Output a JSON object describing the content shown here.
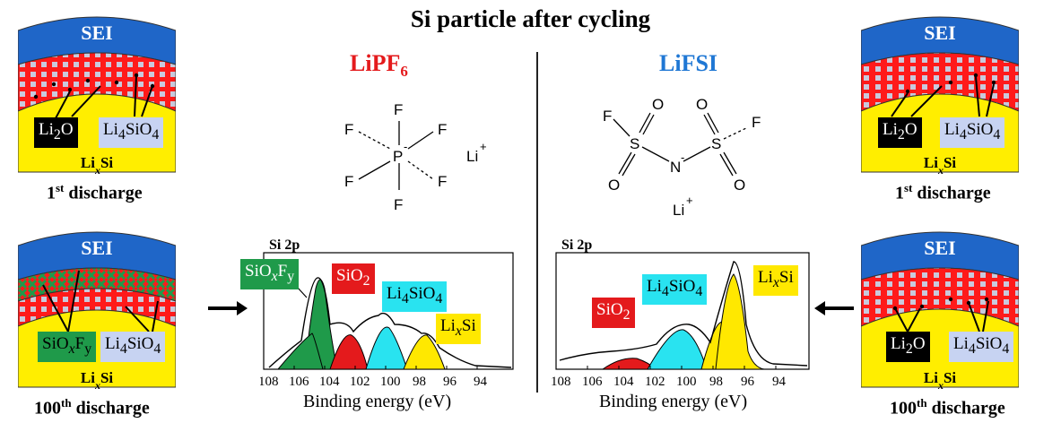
{
  "title": "Si particle after cycling",
  "left": {
    "salt": "LiPF",
    "salt_sub": "6",
    "salt_color": "#e41a1c",
    "molecule": {
      "center": "P",
      "charge": "-",
      "ligand": "F",
      "counter_ion": "Li",
      "counter_charge": "+"
    },
    "spectrum": {
      "title": "Si 2p",
      "xlabel": "Binding energy (eV)",
      "ticks": [
        "108",
        "106",
        "104",
        "102",
        "100",
        "98",
        "96",
        "94"
      ],
      "peaks": [
        {
          "label": "SiO",
          "sub1": "x",
          "mid": "F",
          "sub2": "y",
          "color": "#1a8a3a",
          "text_color": "#fff"
        },
        {
          "label": "SiO",
          "sub1": "2",
          "color": "#e41a1c",
          "text_color": "#fff"
        },
        {
          "label": "Li",
          "sub1": "4",
          "mid": "SiO",
          "sub2": "4",
          "color": "#29e3f0",
          "text_color": "#000"
        },
        {
          "label": "Li",
          "sub1": "x",
          "mid": "Si",
          "color": "#ffe800",
          "text_color": "#000"
        }
      ]
    }
  },
  "right": {
    "salt": "LiFSI",
    "salt_color": "#1f77d4",
    "molecule": {
      "atoms_f": "F",
      "atoms_o": "O",
      "atoms_s": "S",
      "atom_n": "N",
      "charge": "-",
      "counter_ion": "Li",
      "counter_charge": "+"
    },
    "spectrum": {
      "title": "Si 2p",
      "xlabel": "Binding energy (eV)",
      "ticks": [
        "108",
        "106",
        "104",
        "102",
        "100",
        "98",
        "96",
        "94"
      ],
      "peaks": [
        {
          "label": "SiO",
          "sub1": "2",
          "color": "#e41a1c",
          "text_color": "#fff"
        },
        {
          "label": "Li",
          "sub1": "4",
          "mid": "SiO",
          "sub2": "4",
          "color": "#29e3f0",
          "text_color": "#000"
        },
        {
          "label": "Li",
          "sub1": "x",
          "mid": "Si",
          "color": "#ffe800",
          "text_color": "#000"
        }
      ]
    }
  },
  "particles": {
    "sei": "SEI",
    "core": "Li",
    "core_sub": "x",
    "core_tail": "Si",
    "li2o": "Li",
    "li2o_sub": "2",
    "li2o_tail": "O",
    "li4sio4_a": "Li",
    "li4sio4_sub": "4",
    "li4sio4_b": "SiO",
    "li4sio4_sub2": "4",
    "siof_a": "SiO",
    "siof_sub1": "x",
    "siof_b": "F",
    "siof_sub2": "y",
    "colors": {
      "sei": "#1f66c8",
      "middle": "#ff1a1a",
      "core": "#ffee00",
      "grain": "#c9c9dc",
      "green": "#1f9a4a"
    }
  },
  "captions": {
    "first_num": "1",
    "first_sup": "st",
    "first_text": " discharge",
    "hundred_num": "100",
    "hundred_sup": "th",
    "hundred_text": " discharge"
  }
}
